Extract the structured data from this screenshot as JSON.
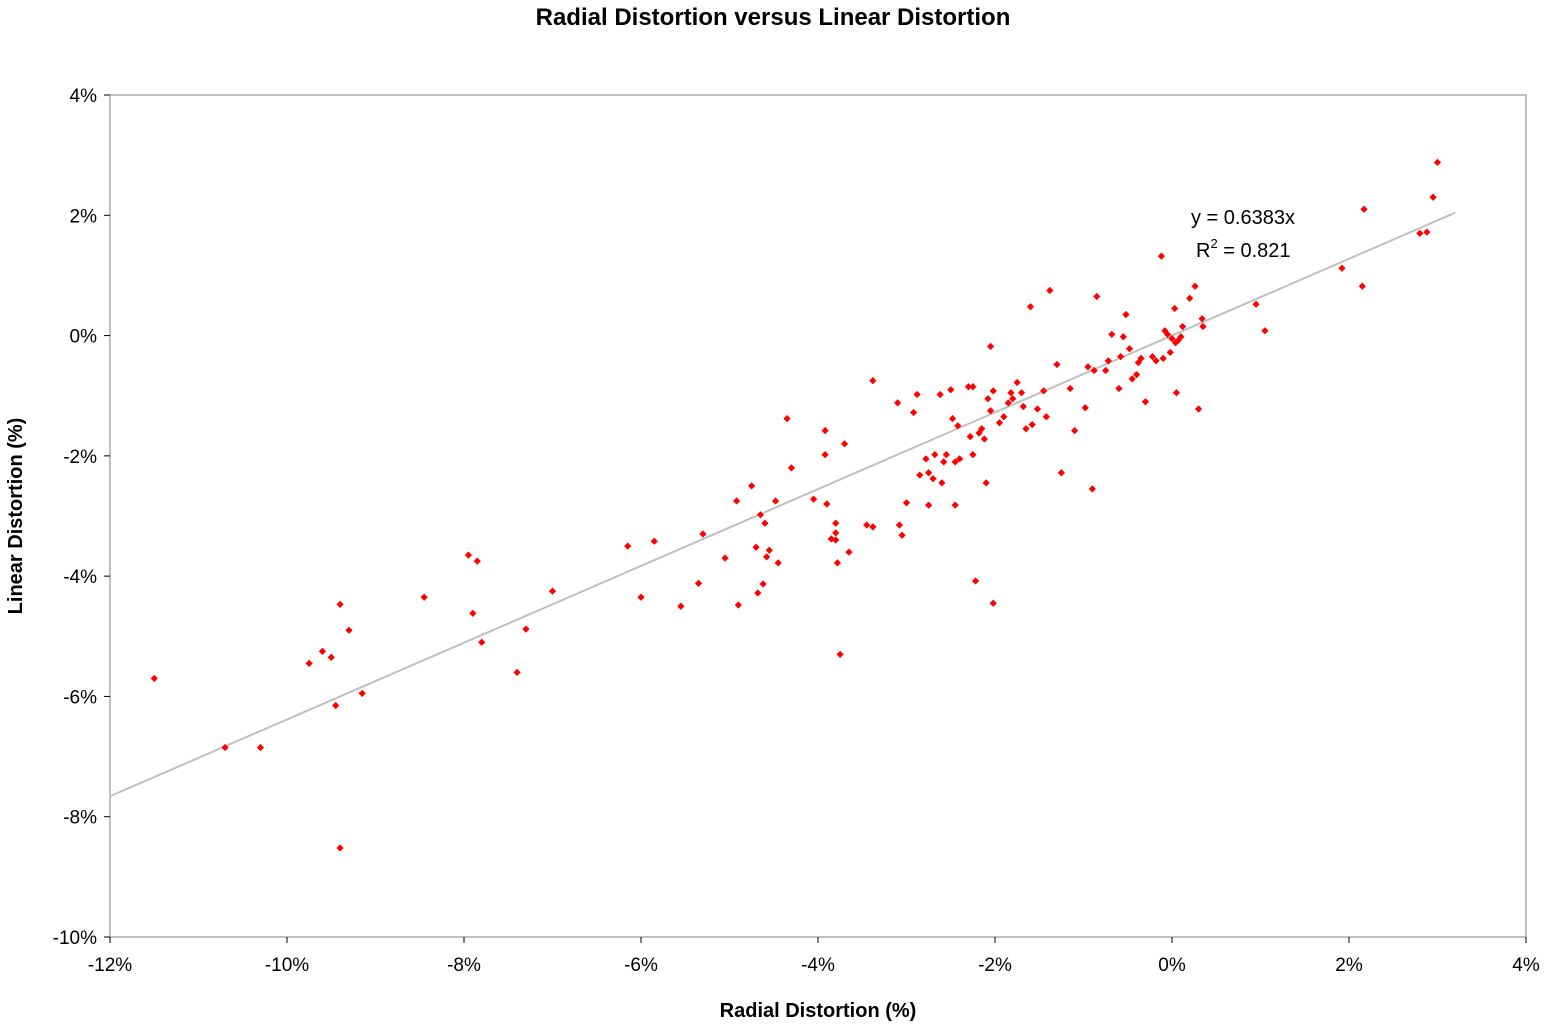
{
  "chart_data": {
    "type": "scatter",
    "title": "Radial Distortion versus Linear Distortion",
    "xlabel": "Radial Distortion (%)",
    "ylabel": "Linear Distortion (%)",
    "xlim": [
      -12,
      4
    ],
    "ylim": [
      -10,
      4
    ],
    "x_ticks": [
      -12,
      -10,
      -8,
      -6,
      -4,
      -2,
      0,
      2,
      4
    ],
    "y_ticks": [
      -10,
      -8,
      -6,
      -4,
      -2,
      0,
      2,
      4
    ],
    "x_tick_labels": [
      "-12%",
      "-10%",
      "-8%",
      "-6%",
      "-4%",
      "-2%",
      "0%",
      "2%",
      "4%"
    ],
    "y_tick_labels": [
      "-10%",
      "-8%",
      "-6%",
      "-4%",
      "-2%",
      "0%",
      "2%",
      "4%"
    ],
    "grid": false,
    "legend": "none",
    "marker_color": "#ff0000",
    "trendline_color": "#c0c0c0",
    "trendline": {
      "slope": 0.6383,
      "intercept": 0,
      "x_range": [
        -12,
        3.2
      ]
    },
    "annotation": {
      "equation": "y = 0.6383x",
      "r2_prefix": "R",
      "r2_sup": "2",
      "r2_value": " = 0.821"
    },
    "series": [
      {
        "points": [
          [
            -11.5,
            -5.7
          ],
          [
            -10.7,
            -6.85
          ],
          [
            -10.3,
            -6.85
          ],
          [
            -9.75,
            -5.45
          ],
          [
            -9.6,
            -5.25
          ],
          [
            -9.5,
            -5.35
          ],
          [
            -9.45,
            -6.15
          ],
          [
            -9.4,
            -4.47
          ],
          [
            -9.3,
            -4.9
          ],
          [
            -9.15,
            -5.95
          ],
          [
            -9.4,
            -8.52
          ],
          [
            -8.45,
            -4.35
          ],
          [
            -7.95,
            -3.65
          ],
          [
            -7.9,
            -4.62
          ],
          [
            -7.85,
            -3.75
          ],
          [
            -7.8,
            -5.1
          ],
          [
            -7.4,
            -5.6
          ],
          [
            -7.3,
            -4.88
          ],
          [
            -7.0,
            -4.25
          ],
          [
            -6.15,
            -3.5
          ],
          [
            -6.0,
            -4.35
          ],
          [
            -5.85,
            -3.42
          ],
          [
            -5.55,
            -4.5
          ],
          [
            -5.35,
            -4.12
          ],
          [
            -5.3,
            -3.3
          ],
          [
            -5.05,
            -3.7
          ],
          [
            -4.92,
            -2.75
          ],
          [
            -4.9,
            -4.48
          ],
          [
            -4.75,
            -2.5
          ],
          [
            -4.7,
            -3.52
          ],
          [
            -4.68,
            -4.28
          ],
          [
            -4.65,
            -2.98
          ],
          [
            -4.62,
            -4.13
          ],
          [
            -4.6,
            -3.12
          ],
          [
            -4.58,
            -3.68
          ],
          [
            -4.55,
            -3.57
          ],
          [
            -4.48,
            -2.75
          ],
          [
            -4.45,
            -3.78
          ],
          [
            -4.35,
            -1.38
          ],
          [
            -4.3,
            -2.2
          ],
          [
            -4.05,
            -2.72
          ],
          [
            -3.92,
            -1.58
          ],
          [
            -3.92,
            -1.98
          ],
          [
            -3.9,
            -2.8
          ],
          [
            -3.85,
            -3.38
          ],
          [
            -3.8,
            -3.12
          ],
          [
            -3.8,
            -3.28
          ],
          [
            -3.8,
            -3.4
          ],
          [
            -3.78,
            -3.78
          ],
          [
            -3.75,
            -5.3
          ],
          [
            -3.7,
            -1.8
          ],
          [
            -3.65,
            -3.6
          ],
          [
            -3.45,
            -3.15
          ],
          [
            -3.38,
            -0.75
          ],
          [
            -3.38,
            -3.18
          ],
          [
            -3.1,
            -1.12
          ],
          [
            -3.08,
            -3.15
          ],
          [
            -3.05,
            -3.32
          ],
          [
            -3.0,
            -2.78
          ],
          [
            -2.92,
            -1.28
          ],
          [
            -2.88,
            -0.98
          ],
          [
            -2.85,
            -2.32
          ],
          [
            -2.78,
            -2.05
          ],
          [
            -2.75,
            -2.28
          ],
          [
            -2.75,
            -2.82
          ],
          [
            -2.7,
            -2.38
          ],
          [
            -2.68,
            -1.98
          ],
          [
            -2.62,
            -0.98
          ],
          [
            -2.6,
            -2.45
          ],
          [
            -2.58,
            -2.1
          ],
          [
            -2.55,
            -1.98
          ],
          [
            -2.5,
            -0.9
          ],
          [
            -2.48,
            -1.38
          ],
          [
            -2.45,
            -2.1
          ],
          [
            -2.45,
            -2.82
          ],
          [
            -2.42,
            -1.5
          ],
          [
            -2.4,
            -2.05
          ],
          [
            -2.3,
            -0.85
          ],
          [
            -2.28,
            -1.68
          ],
          [
            -2.25,
            -0.85
          ],
          [
            -2.25,
            -1.98
          ],
          [
            -2.22,
            -4.08
          ],
          [
            -2.18,
            -1.62
          ],
          [
            -2.15,
            -1.55
          ],
          [
            -2.12,
            -1.72
          ],
          [
            -2.1,
            -2.45
          ],
          [
            -2.08,
            -1.05
          ],
          [
            -2.05,
            -0.18
          ],
          [
            -2.05,
            -1.25
          ],
          [
            -2.02,
            -0.92
          ],
          [
            -2.02,
            -4.45
          ],
          [
            -1.95,
            -1.45
          ],
          [
            -1.9,
            -1.35
          ],
          [
            -1.85,
            -1.12
          ],
          [
            -1.82,
            -0.95
          ],
          [
            -1.8,
            -1.05
          ],
          [
            -1.75,
            -0.78
          ],
          [
            -1.7,
            -0.95
          ],
          [
            -1.68,
            -1.18
          ],
          [
            -1.65,
            -1.55
          ],
          [
            -1.6,
            0.48
          ],
          [
            -1.58,
            -1.48
          ],
          [
            -1.52,
            -1.22
          ],
          [
            -1.45,
            -0.92
          ],
          [
            -1.42,
            -1.35
          ],
          [
            -1.38,
            0.75
          ],
          [
            -1.3,
            -0.48
          ],
          [
            -1.25,
            -2.28
          ],
          [
            -1.15,
            -0.88
          ],
          [
            -1.1,
            -1.58
          ],
          [
            -0.98,
            -1.2
          ],
          [
            -0.95,
            -0.52
          ],
          [
            -0.9,
            -2.55
          ],
          [
            -0.88,
            -0.58
          ],
          [
            -0.85,
            0.65
          ],
          [
            -0.75,
            -0.58
          ],
          [
            -0.72,
            -0.42
          ],
          [
            -0.68,
            0.02
          ],
          [
            -0.6,
            -0.88
          ],
          [
            -0.58,
            -0.35
          ],
          [
            -0.55,
            -0.02
          ],
          [
            -0.52,
            0.35
          ],
          [
            -0.48,
            -0.22
          ],
          [
            -0.45,
            -0.72
          ],
          [
            -0.4,
            -0.65
          ],
          [
            -0.38,
            -0.45
          ],
          [
            -0.35,
            -0.38
          ],
          [
            -0.3,
            -1.1
          ],
          [
            -0.22,
            -0.35
          ],
          [
            -0.18,
            -0.42
          ],
          [
            -0.12,
            1.32
          ],
          [
            -0.1,
            -0.38
          ],
          [
            -0.08,
            0.08
          ],
          [
            -0.05,
            0.02
          ],
          [
            -0.02,
            -0.28
          ],
          [
            0.0,
            -0.05
          ],
          [
            0.03,
            0.45
          ],
          [
            0.04,
            -0.12
          ],
          [
            0.05,
            -0.95
          ],
          [
            0.07,
            -0.08
          ],
          [
            0.1,
            -0.02
          ],
          [
            0.12,
            0.15
          ],
          [
            0.2,
            0.62
          ],
          [
            0.26,
            0.82
          ],
          [
            0.3,
            -1.22
          ],
          [
            0.34,
            0.28
          ],
          [
            0.35,
            0.15
          ],
          [
            0.95,
            0.52
          ],
          [
            1.05,
            0.08
          ],
          [
            1.92,
            1.12
          ],
          [
            2.15,
            0.82
          ],
          [
            2.17,
            2.1
          ],
          [
            2.8,
            1.7
          ],
          [
            2.88,
            1.72
          ],
          [
            2.95,
            2.3
          ],
          [
            3.0,
            2.88
          ]
        ]
      }
    ]
  }
}
